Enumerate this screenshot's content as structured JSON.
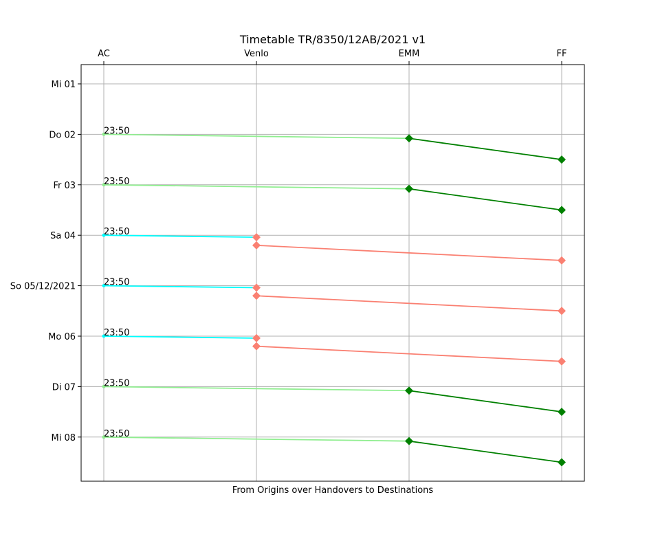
{
  "chart_data": {
    "type": "line",
    "title": "Timetable TR/8350/12AB/2021 v1",
    "xlabel": "From Origins over Handovers to Destinations",
    "x_categories": [
      "AC",
      "Venlo",
      "EMM",
      "FF"
    ],
    "y_categories": [
      "Mi 01",
      "Do 02",
      "Fr 03",
      "Sa 04",
      "So 05/12/2021",
      "Mo 06",
      "Di 07",
      "Mi 08"
    ],
    "y_inverted": true,
    "y_unit": "days",
    "grid": true,
    "colors": {
      "ac_to_emm": "#90ee90",
      "emm_to_ff": "#008000",
      "ac_to_venlo": "#00ffff",
      "venlo_to_ff": "#fa8072"
    },
    "trains": [
      {
        "departure_label": "23:50",
        "route": "emm",
        "ac": 1.0,
        "emm": 1.08,
        "ff": 1.5
      },
      {
        "departure_label": "23:50",
        "route": "emm",
        "ac": 2.0,
        "emm": 2.08,
        "ff": 2.5
      },
      {
        "departure_label": "23:50",
        "route": "venlo",
        "ac": 3.0,
        "venlo_arr": 3.04,
        "venlo_dep": 3.2,
        "ff": 3.5
      },
      {
        "departure_label": "23:50",
        "route": "venlo",
        "ac": 4.0,
        "venlo_arr": 4.04,
        "venlo_dep": 4.2,
        "ff": 4.5
      },
      {
        "departure_label": "23:50",
        "route": "venlo",
        "ac": 5.0,
        "venlo_arr": 5.04,
        "venlo_dep": 5.2,
        "ff": 5.5
      },
      {
        "departure_label": "23:50",
        "route": "emm",
        "ac": 6.0,
        "emm": 6.08,
        "ff": 6.5
      },
      {
        "departure_label": "23:50",
        "route": "emm",
        "ac": 7.0,
        "emm": 7.08,
        "ff": 7.5
      }
    ]
  }
}
